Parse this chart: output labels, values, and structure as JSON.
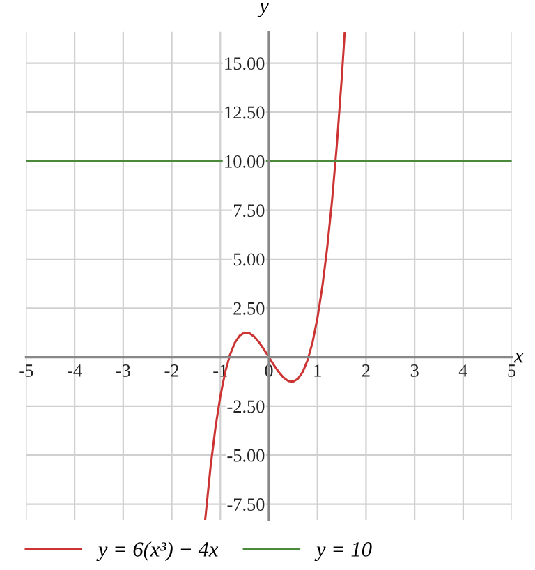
{
  "chart_data": {
    "type": "line",
    "xlabel": "x",
    "ylabel": "y",
    "xlim": [
      -5,
      5
    ],
    "ylim": [
      -8.3,
      16.6
    ],
    "xticks": [
      -5,
      -4,
      -3,
      -2,
      -1,
      0,
      1,
      2,
      3,
      4,
      5
    ],
    "yticks": [
      {
        "value": -7.5,
        "label": "-7.50"
      },
      {
        "value": -5,
        "label": "-5.00"
      },
      {
        "value": -2.5,
        "label": "-2.50"
      },
      {
        "value": 0,
        "label": null
      },
      {
        "value": 2.5,
        "label": "2.50"
      },
      {
        "value": 5,
        "label": "5.00"
      },
      {
        "value": 7.5,
        "label": "7.50"
      },
      {
        "value": 10,
        "label": "10.00"
      },
      {
        "value": 12.5,
        "label": "12.50"
      },
      {
        "value": 15,
        "label": "15.00"
      }
    ],
    "grid": true,
    "legend": "bottom",
    "marker": "none",
    "line_style": "solid",
    "series": [
      {
        "name": "y = 6(x³) − 4x",
        "color": "#cc3333",
        "x": [
          -1.31,
          -1.2,
          -1.1,
          -1.0,
          -0.9,
          -0.8,
          -0.7,
          -0.6,
          -0.5,
          -0.4,
          -0.3,
          -0.2,
          -0.1,
          0,
          0.1,
          0.2,
          0.3,
          0.4,
          0.5,
          0.6,
          0.7,
          0.8,
          0.9,
          1.0,
          1.1,
          1.2,
          1.3,
          1.4,
          1.5,
          1.56
        ],
        "values": [
          -8.25,
          -5.57,
          -3.59,
          -2.0,
          -0.77,
          0.13,
          0.74,
          1.1,
          1.25,
          1.22,
          1.04,
          0.75,
          0.39,
          0,
          -0.39,
          -0.75,
          -1.04,
          -1.22,
          -1.25,
          -1.1,
          -0.74,
          -0.13,
          0.77,
          2.0,
          3.59,
          5.57,
          7.98,
          10.86,
          14.25,
          16.54
        ]
      },
      {
        "name": "y = 10",
        "color": "#4a8a3a",
        "x": [
          -5,
          5
        ],
        "values": [
          10,
          10
        ]
      }
    ]
  }
}
